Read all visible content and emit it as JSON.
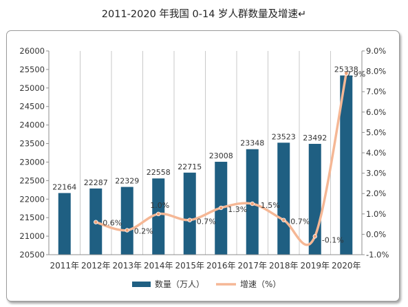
{
  "page": {
    "title": "2011-2020 年我国 0-14 岁人群数量及增速↵"
  },
  "chart_data": {
    "type": "bar",
    "categories": [
      "2011年",
      "2012年",
      "2013年",
      "2014年",
      "2015年",
      "2016年",
      "2017年",
      "2018年",
      "2019年",
      "2020年"
    ],
    "series": [
      {
        "name": "数量（万人）",
        "type": "bar",
        "axis": "left",
        "values": [
          22164,
          22287,
          22329,
          22558,
          22715,
          23008,
          23348,
          23523,
          23492,
          25338
        ],
        "labels": [
          "22164",
          "22287",
          "22329",
          "22558",
          "22715",
          "23008",
          "23348",
          "23523",
          "23492",
          "25338"
        ]
      },
      {
        "name": "增速（%）",
        "type": "line",
        "axis": "right",
        "smooth": true,
        "values": [
          null,
          0.6,
          0.2,
          1.0,
          0.7,
          1.3,
          1.5,
          0.7,
          -0.1,
          7.9
        ],
        "labels": [
          null,
          "0.6%",
          "0.2%",
          "1.0%",
          "0.7%",
          "1.3%",
          "1.5%",
          "0.7%",
          "-0.1%",
          "7.9%"
        ]
      }
    ],
    "ylim": [
      20500,
      26000
    ],
    "ystep": 500,
    "y_ticks": [
      "20500",
      "21000",
      "21500",
      "22000",
      "22500",
      "23000",
      "23500",
      "24000",
      "24500",
      "25000",
      "25500",
      "26000"
    ],
    "y2lim": [
      -1.0,
      9.0
    ],
    "y2step": 1.0,
    "y2_ticks": [
      "-1.0%",
      "0.0%",
      "1.0%",
      "2.0%",
      "3.0%",
      "4.0%",
      "5.0%",
      "6.0%",
      "7.0%",
      "8.0%",
      "9.0%"
    ],
    "grid": "vertical",
    "legend_position": "bottom",
    "colors": {
      "bar": "#1f5f82",
      "line": "#f5b795",
      "marker": "#f0a47c",
      "grid": "#c9c9c9",
      "axis": "#8c8c8c"
    }
  }
}
